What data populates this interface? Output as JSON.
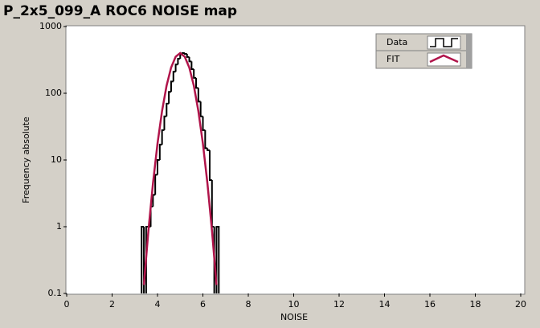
{
  "chart_data": {
    "type": "histogram",
    "title": "P_2x5_099_A ROC6 NOISE map",
    "xlabel": "NOISE",
    "ylabel": "Frequency absolute",
    "xlim": [
      0,
      20
    ],
    "xticks": [
      0,
      2,
      4,
      6,
      8,
      10,
      12,
      14,
      16,
      18,
      20
    ],
    "ylim": [
      0.1,
      1000
    ],
    "yticks": [
      0.1,
      1,
      10,
      100,
      1000
    ],
    "log_y": true,
    "legend": "top-right",
    "bins": [
      3.3,
      3.4,
      3.5,
      3.6,
      3.7,
      3.8,
      3.9,
      4.0,
      4.1,
      4.2,
      4.3,
      4.4,
      4.5,
      4.6,
      4.7,
      4.8,
      4.9,
      5.0,
      5.1,
      5.2,
      5.3,
      5.4,
      5.5,
      5.6,
      5.7,
      5.8,
      5.9,
      6.0,
      6.1,
      6.2,
      6.3,
      6.4,
      6.5,
      6.6,
      6.7
    ],
    "series": [
      {
        "name": "Data",
        "color": "#000000",
        "values": [
          1,
          0,
          1,
          1,
          2,
          3,
          6,
          10,
          17,
          28,
          45,
          70,
          105,
          150,
          210,
          270,
          330,
          380,
          400,
          390,
          350,
          300,
          230,
          170,
          120,
          75,
          45,
          28,
          15,
          14,
          5,
          1,
          0,
          1
        ]
      },
      {
        "name": "FIT",
        "color": "#b0144a",
        "x": [
          3.4,
          3.6,
          3.8,
          4.0,
          4.2,
          4.4,
          4.6,
          4.8,
          5.0,
          5.2,
          5.4,
          5.6,
          5.8,
          6.0,
          6.2,
          6.4,
          6.6
        ],
        "values": [
          0.134,
          0.875,
          4.44,
          17.6,
          54.1,
          130,
          243,
          353,
          400,
          353,
          243,
          130,
          54.1,
          17.6,
          4.44,
          0.875,
          0.134
        ]
      }
    ]
  }
}
